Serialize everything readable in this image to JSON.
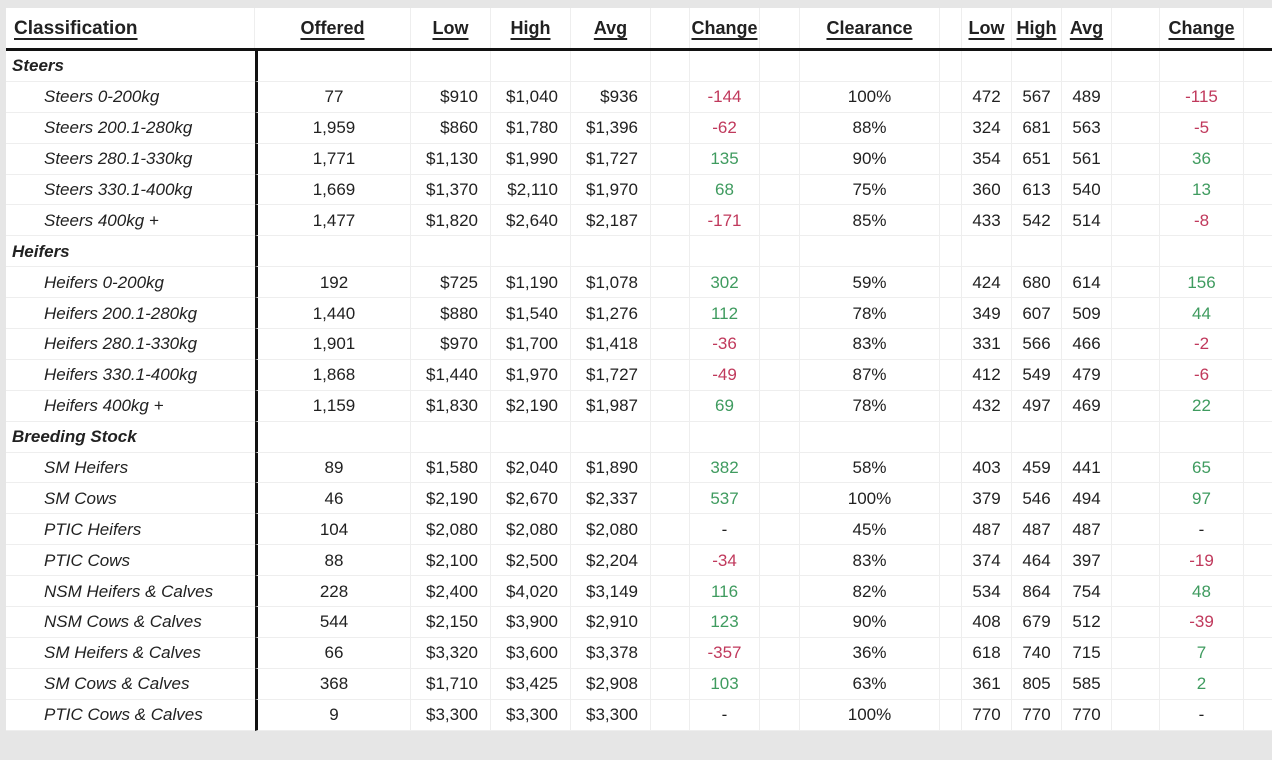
{
  "colors": {
    "positive_change": "#3f9b5f",
    "negative_change": "#c0395c",
    "text": "#212121",
    "page_background": "#e6e6e6",
    "sheet_background": "#ffffff"
  },
  "table": {
    "headers": [
      "Classification",
      "Offered",
      "Low",
      "High",
      "Avg",
      "Change",
      "Clearance",
      "Low",
      "High",
      "Avg",
      "Change"
    ],
    "sections": [
      {
        "label": "Steers",
        "rows": [
          {
            "classification": "Steers 0-200kg",
            "offered": "77",
            "low": "$910",
            "high": "$1,040",
            "avg": "$936",
            "change": "-144",
            "clearance": "100%",
            "c_low": "472",
            "c_high": "567",
            "c_avg": "489",
            "c_change": "-115"
          },
          {
            "classification": "Steers 200.1-280kg",
            "offered": "1,959",
            "low": "$860",
            "high": "$1,780",
            "avg": "$1,396",
            "change": "-62",
            "clearance": "88%",
            "c_low": "324",
            "c_high": "681",
            "c_avg": "563",
            "c_change": "-5"
          },
          {
            "classification": "Steers 280.1-330kg",
            "offered": "1,771",
            "low": "$1,130",
            "high": "$1,990",
            "avg": "$1,727",
            "change": "135",
            "clearance": "90%",
            "c_low": "354",
            "c_high": "651",
            "c_avg": "561",
            "c_change": "36"
          },
          {
            "classification": "Steers 330.1-400kg",
            "offered": "1,669",
            "low": "$1,370",
            "high": "$2,110",
            "avg": "$1,970",
            "change": "68",
            "clearance": "75%",
            "c_low": "360",
            "c_high": "613",
            "c_avg": "540",
            "c_change": "13"
          },
          {
            "classification": "Steers 400kg +",
            "offered": "1,477",
            "low": "$1,820",
            "high": "$2,640",
            "avg": "$2,187",
            "change": "-171",
            "clearance": "85%",
            "c_low": "433",
            "c_high": "542",
            "c_avg": "514",
            "c_change": "-8"
          }
        ]
      },
      {
        "label": "Heifers",
        "rows": [
          {
            "classification": "Heifers 0-200kg",
            "offered": "192",
            "low": "$725",
            "high": "$1,190",
            "avg": "$1,078",
            "change": "302",
            "clearance": "59%",
            "c_low": "424",
            "c_high": "680",
            "c_avg": "614",
            "c_change": "156"
          },
          {
            "classification": "Heifers 200.1-280kg",
            "offered": "1,440",
            "low": "$880",
            "high": "$1,540",
            "avg": "$1,276",
            "change": "112",
            "clearance": "78%",
            "c_low": "349",
            "c_high": "607",
            "c_avg": "509",
            "c_change": "44"
          },
          {
            "classification": "Heifers 280.1-330kg",
            "offered": "1,901",
            "low": "$970",
            "high": "$1,700",
            "avg": "$1,418",
            "change": "-36",
            "clearance": "83%",
            "c_low": "331",
            "c_high": "566",
            "c_avg": "466",
            "c_change": "-2"
          },
          {
            "classification": "Heifers 330.1-400kg",
            "offered": "1,868",
            "low": "$1,440",
            "high": "$1,970",
            "avg": "$1,727",
            "change": "-49",
            "clearance": "87%",
            "c_low": "412",
            "c_high": "549",
            "c_avg": "479",
            "c_change": "-6"
          },
          {
            "classification": "Heifers 400kg +",
            "offered": "1,159",
            "low": "$1,830",
            "high": "$2,190",
            "avg": "$1,987",
            "change": "69",
            "clearance": "78%",
            "c_low": "432",
            "c_high": "497",
            "c_avg": "469",
            "c_change": "22"
          }
        ]
      },
      {
        "label": "Breeding Stock",
        "rows": [
          {
            "classification": "SM Heifers",
            "offered": "89",
            "low": "$1,580",
            "high": "$2,040",
            "avg": "$1,890",
            "change": "382",
            "clearance": "58%",
            "c_low": "403",
            "c_high": "459",
            "c_avg": "441",
            "c_change": "65"
          },
          {
            "classification": "SM Cows",
            "offered": "46",
            "low": "$2,190",
            "high": "$2,670",
            "avg": "$2,337",
            "change": "537",
            "clearance": "100%",
            "c_low": "379",
            "c_high": "546",
            "c_avg": "494",
            "c_change": "97"
          },
          {
            "classification": "PTIC Heifers",
            "offered": "104",
            "low": "$2,080",
            "high": "$2,080",
            "avg": "$2,080",
            "change": "-",
            "clearance": "45%",
            "c_low": "487",
            "c_high": "487",
            "c_avg": "487",
            "c_change": "-"
          },
          {
            "classification": "PTIC Cows",
            "offered": "88",
            "low": "$2,100",
            "high": "$2,500",
            "avg": "$2,204",
            "change": "-34",
            "clearance": "83%",
            "c_low": "374",
            "c_high": "464",
            "c_avg": "397",
            "c_change": "-19"
          },
          {
            "classification": "NSM Heifers & Calves",
            "offered": "228",
            "low": "$2,400",
            "high": "$4,020",
            "avg": "$3,149",
            "change": "116",
            "clearance": "82%",
            "c_low": "534",
            "c_high": "864",
            "c_avg": "754",
            "c_change": "48"
          },
          {
            "classification": "NSM Cows & Calves",
            "offered": "544",
            "low": "$2,150",
            "high": "$3,900",
            "avg": "$2,910",
            "change": "123",
            "clearance": "90%",
            "c_low": "408",
            "c_high": "679",
            "c_avg": "512",
            "c_change": "-39"
          },
          {
            "classification": "SM Heifers & Calves",
            "offered": "66",
            "low": "$3,320",
            "high": "$3,600",
            "avg": "$3,378",
            "change": "-357",
            "clearance": "36%",
            "c_low": "618",
            "c_high": "740",
            "c_avg": "715",
            "c_change": "7"
          },
          {
            "classification": "SM Cows & Calves",
            "offered": "368",
            "low": "$1,710",
            "high": "$3,425",
            "avg": "$2,908",
            "change": "103",
            "clearance": "63%",
            "c_low": "361",
            "c_high": "805",
            "c_avg": "585",
            "c_change": "2"
          },
          {
            "classification": "PTIC Cows & Calves",
            "offered": "9",
            "low": "$3,300",
            "high": "$3,300",
            "avg": "$3,300",
            "change": "-",
            "clearance": "100%",
            "c_low": "770",
            "c_high": "770",
            "c_avg": "770",
            "c_change": "-"
          }
        ]
      }
    ]
  }
}
